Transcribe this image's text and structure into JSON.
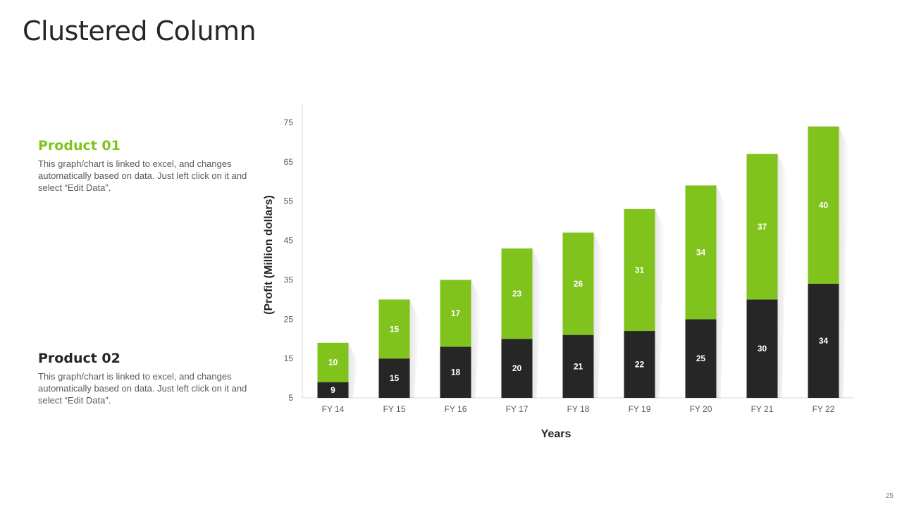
{
  "page": {
    "title": "Clustered Column",
    "slide_number": "25"
  },
  "legend": {
    "product1": {
      "title": "Product 01",
      "description": "This graph/chart is linked to excel, and changes automatically based on data. Just left click on it and select “Edit Data”."
    },
    "product2": {
      "title": "Product 02",
      "description": "This graph/chart is linked to excel, and changes automatically based on data. Just left click on it and select “Edit Data”."
    }
  },
  "colors": {
    "product1": "#7fc31c",
    "product2": "#262626",
    "axis": "#d9d9d9",
    "tick_text": "#595959"
  },
  "chart_data": {
    "type": "bar",
    "stacked": true,
    "categories": [
      "FY 14",
      "FY 15",
      "FY 16",
      "FY 17",
      "FY 18",
      "FY 19",
      "FY 20",
      "FY 21",
      "FY 22"
    ],
    "series": [
      {
        "values": [
          9,
          15,
          18,
          20,
          21,
          22,
          25,
          30,
          34
        ]
      },
      {
        "values": [
          10,
          15,
          17,
          23,
          26,
          31,
          34,
          37,
          40
        ]
      }
    ],
    "xlabel": "Years",
    "ylabel": "(Profit  (Million dollars)",
    "ylim": [
      5,
      75
    ],
    "yticks": [
      5,
      15,
      25,
      35,
      45,
      55,
      65,
      75
    ],
    "grid": false,
    "legend": "none"
  }
}
